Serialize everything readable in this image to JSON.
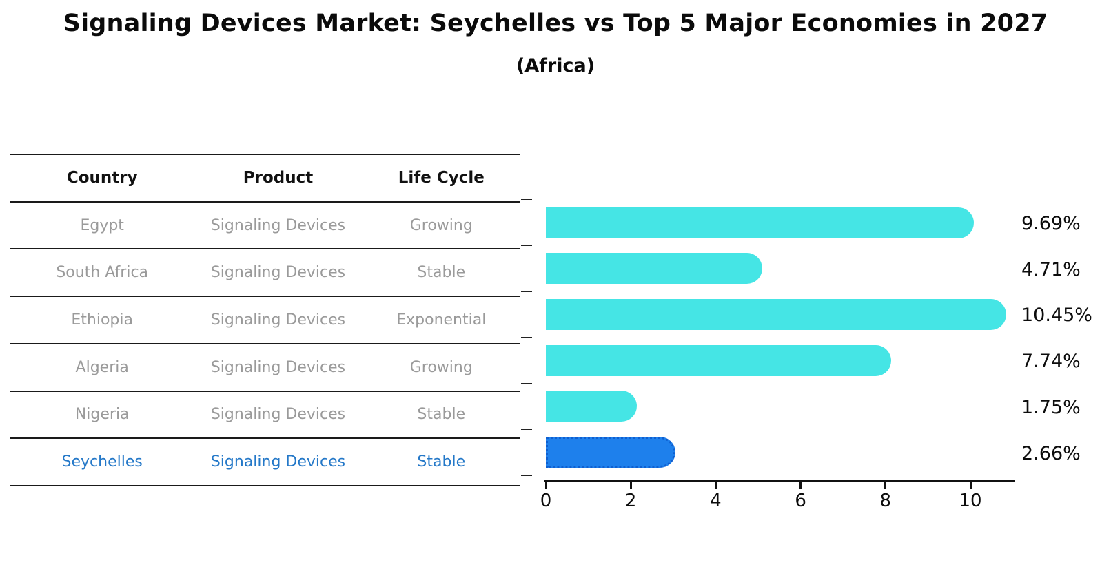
{
  "title": "Signaling Devices Market: Seychelles vs Top 5 Major Economies in 2027",
  "subtitle": "(Africa)",
  "table": {
    "headers": [
      "Country",
      "Product",
      "Life Cycle"
    ],
    "rows": [
      {
        "country": "Egypt",
        "product": "Signaling Devices",
        "life_cycle": "Growing",
        "highlight": false
      },
      {
        "country": "South Africa",
        "product": "Signaling Devices",
        "life_cycle": "Stable",
        "highlight": false
      },
      {
        "country": "Ethiopia",
        "product": "Signaling Devices",
        "life_cycle": "Exponential",
        "highlight": false
      },
      {
        "country": "Algeria",
        "product": "Signaling Devices",
        "life_cycle": "Growing",
        "highlight": false
      },
      {
        "country": "Nigeria",
        "product": "Signaling Devices",
        "life_cycle": "Stable",
        "highlight": false
      },
      {
        "country": "Seychelles",
        "product": "Signaling Devices",
        "life_cycle": "Stable",
        "highlight": true
      }
    ]
  },
  "chart_data": {
    "type": "bar",
    "orientation": "horizontal",
    "title": "Signaling Devices Market: Seychelles vs Top 5 Major Economies in 2027 (Africa)",
    "categories": [
      "Egypt",
      "South Africa",
      "Ethiopia",
      "Algeria",
      "Nigeria",
      "Seychelles"
    ],
    "values": [
      9.69,
      4.71,
      10.45,
      7.74,
      1.75,
      2.66
    ],
    "value_labels": [
      "9.69%",
      "4.71%",
      "10.45%",
      "7.74%",
      "1.75%",
      "2.66%"
    ],
    "x_ticks": [
      0,
      2,
      4,
      6,
      8,
      10
    ],
    "xlim": [
      0,
      11
    ],
    "grid": false,
    "legend": "none",
    "bar_color": "#45E5E5",
    "highlight_color": "#1E80EC",
    "highlight_edge_color": "#0F5FD0",
    "highlight_index": 5
  },
  "colors": {
    "text_primary": "#0b0b0b",
    "text_muted": "#9a9a9a",
    "text_highlight": "#2478c8",
    "table_line": "#1a1a1a"
  }
}
